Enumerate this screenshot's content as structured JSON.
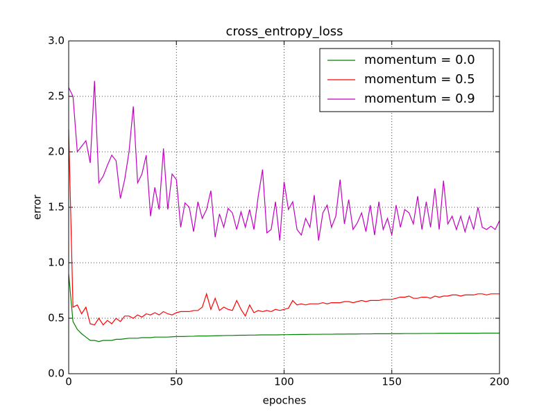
{
  "chart_data": {
    "type": "line",
    "title": "cross_entropy_loss",
    "x_label": "epoches",
    "y_label": "error",
    "x": [
      0,
      2,
      4,
      6,
      8,
      10,
      12,
      14,
      16,
      18,
      20,
      22,
      24,
      26,
      28,
      30,
      32,
      34,
      36,
      38,
      40,
      42,
      44,
      46,
      48,
      50,
      52,
      54,
      56,
      58,
      60,
      62,
      64,
      66,
      68,
      70,
      72,
      74,
      76,
      78,
      80,
      82,
      84,
      86,
      88,
      90,
      92,
      94,
      96,
      98,
      100,
      102,
      104,
      106,
      108,
      110,
      112,
      114,
      116,
      118,
      120,
      122,
      124,
      126,
      128,
      130,
      132,
      134,
      136,
      138,
      140,
      142,
      144,
      146,
      148,
      150,
      152,
      154,
      156,
      158,
      160,
      162,
      164,
      166,
      168,
      170,
      172,
      174,
      176,
      178,
      180,
      182,
      184,
      186,
      188,
      190,
      192,
      194,
      196,
      198,
      200
    ],
    "series": [
      {
        "name": "momentum = 0.0",
        "color": "#008000",
        "values": [
          0.9,
          0.47,
          0.4,
          0.36,
          0.33,
          0.3,
          0.3,
          0.29,
          0.3,
          0.3,
          0.3,
          0.31,
          0.31,
          0.315,
          0.32,
          0.32,
          0.32,
          0.325,
          0.325,
          0.325,
          0.33,
          0.33,
          0.33,
          0.33,
          0.333,
          0.335,
          0.335,
          0.336,
          0.337,
          0.338,
          0.34,
          0.34,
          0.34,
          0.341,
          0.342,
          0.343,
          0.344,
          0.345,
          0.345,
          0.346,
          0.347,
          0.347,
          0.348,
          0.348,
          0.349,
          0.35,
          0.35,
          0.35,
          0.35,
          0.351,
          0.352,
          0.352,
          0.353,
          0.353,
          0.354,
          0.354,
          0.355,
          0.355,
          0.355,
          0.356,
          0.356,
          0.356,
          0.357,
          0.357,
          0.357,
          0.358,
          0.358,
          0.358,
          0.359,
          0.359,
          0.359,
          0.36,
          0.36,
          0.36,
          0.36,
          0.361,
          0.361,
          0.361,
          0.362,
          0.362,
          0.362,
          0.362,
          0.363,
          0.363,
          0.363,
          0.363,
          0.364,
          0.364,
          0.364,
          0.364,
          0.364,
          0.365,
          0.365,
          0.365,
          0.365,
          0.365,
          0.366,
          0.366,
          0.366,
          0.366,
          0.366
        ]
      },
      {
        "name": "momentum = 0.5",
        "color": "#ff0000",
        "values": [
          2.2,
          0.6,
          0.62,
          0.54,
          0.6,
          0.45,
          0.44,
          0.5,
          0.44,
          0.48,
          0.45,
          0.5,
          0.47,
          0.52,
          0.52,
          0.5,
          0.53,
          0.51,
          0.54,
          0.53,
          0.55,
          0.53,
          0.56,
          0.54,
          0.53,
          0.55,
          0.56,
          0.56,
          0.56,
          0.57,
          0.57,
          0.6,
          0.72,
          0.58,
          0.68,
          0.57,
          0.6,
          0.58,
          0.57,
          0.66,
          0.58,
          0.52,
          0.62,
          0.55,
          0.57,
          0.56,
          0.57,
          0.56,
          0.58,
          0.57,
          0.58,
          0.59,
          0.66,
          0.62,
          0.63,
          0.62,
          0.63,
          0.63,
          0.63,
          0.64,
          0.63,
          0.64,
          0.64,
          0.64,
          0.65,
          0.65,
          0.64,
          0.65,
          0.66,
          0.65,
          0.66,
          0.66,
          0.66,
          0.67,
          0.67,
          0.67,
          0.68,
          0.69,
          0.69,
          0.7,
          0.68,
          0.68,
          0.69,
          0.69,
          0.68,
          0.7,
          0.69,
          0.7,
          0.7,
          0.71,
          0.71,
          0.7,
          0.71,
          0.71,
          0.71,
          0.72,
          0.72,
          0.71,
          0.72,
          0.72,
          0.72
        ]
      },
      {
        "name": "momentum = 0.9",
        "color": "#bf00bf",
        "values": [
          2.58,
          2.5,
          2.0,
          2.05,
          2.1,
          1.9,
          2.64,
          1.72,
          1.78,
          1.88,
          1.97,
          1.92,
          1.58,
          1.75,
          2.0,
          2.41,
          1.72,
          1.8,
          1.97,
          1.42,
          1.68,
          1.48,
          2.03,
          1.48,
          1.8,
          1.75,
          1.32,
          1.54,
          1.5,
          1.28,
          1.55,
          1.4,
          1.48,
          1.65,
          1.23,
          1.44,
          1.32,
          1.49,
          1.45,
          1.3,
          1.46,
          1.32,
          1.48,
          1.3,
          1.6,
          1.84,
          1.27,
          1.3,
          1.55,
          1.2,
          1.73,
          1.48,
          1.55,
          1.3,
          1.25,
          1.4,
          1.32,
          1.61,
          1.2,
          1.45,
          1.52,
          1.32,
          1.42,
          1.75,
          1.35,
          1.57,
          1.3,
          1.36,
          1.45,
          1.28,
          1.52,
          1.25,
          1.55,
          1.3,
          1.4,
          1.25,
          1.52,
          1.32,
          1.48,
          1.45,
          1.35,
          1.6,
          1.3,
          1.55,
          1.32,
          1.67,
          1.3,
          1.74,
          1.35,
          1.42,
          1.3,
          1.42,
          1.28,
          1.42,
          1.3,
          1.5,
          1.32,
          1.3,
          1.33,
          1.3,
          1.38
        ]
      }
    ],
    "xlim": [
      0,
      200
    ],
    "ylim": [
      0,
      3
    ],
    "xticks": [
      0,
      50,
      100,
      150,
      200
    ],
    "yticks": [
      {
        "value": 0,
        "label": "0.0"
      },
      0.5,
      {
        "value": 1,
        "label": "1.0"
      },
      1.5,
      {
        "value": 2,
        "label": "2.0"
      },
      2.5,
      {
        "value": 3,
        "label": "3.0"
      }
    ],
    "grid": true,
    "legend": "upper right"
  }
}
